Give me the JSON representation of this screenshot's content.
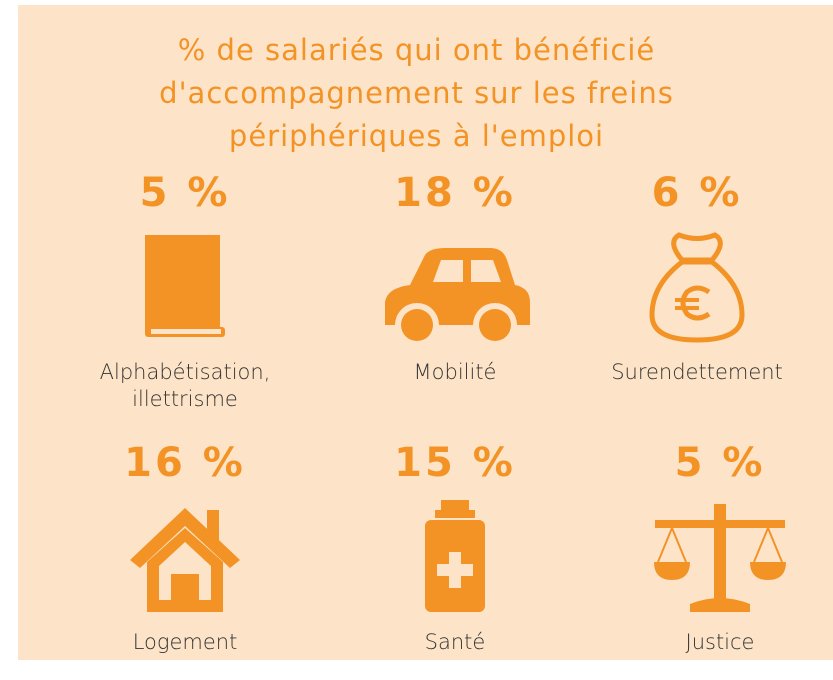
{
  "title_lines": [
    "% de salariés qui ont bénéficié",
    "d'accompagnement sur les freins",
    "périphériques à l'emploi"
  ],
  "items": [
    {
      "value": "5 %",
      "label": "Alphabétisation, illettrisme"
    },
    {
      "value": "18 %",
      "label": "Mobilité"
    },
    {
      "value": "6 %",
      "label": "Surendettement"
    },
    {
      "value": "16 %",
      "label": "Logement"
    },
    {
      "value": "15 %",
      "label": "Santé"
    },
    {
      "value": "5 %",
      "label": "Justice"
    }
  ]
}
